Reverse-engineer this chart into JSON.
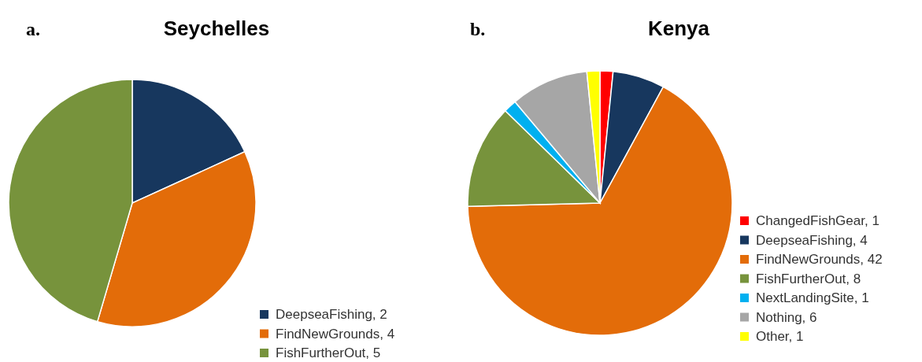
{
  "chart_data": [
    {
      "type": "pie",
      "title": "Seychelles",
      "annotations": [
        "a."
      ],
      "categories": [
        "DeepseaFishing, 2",
        "FindNewGrounds, 4",
        "FishFurtherOut, 5"
      ],
      "values": [
        2,
        4,
        5
      ],
      "colors": [
        "#17375e",
        "#e36c09",
        "#77933c"
      ],
      "legend": "bottom right"
    },
    {
      "type": "pie",
      "title": "Kenya",
      "annotations": [
        "b."
      ],
      "categories": [
        "ChangedFishGear, 1",
        "DeepseaFishing, 4",
        "FindNewGrounds, 42",
        "FishFurtherOut, 8",
        "NextLandingSite, 1",
        "Nothing, 6",
        "Other, 1"
      ],
      "values": [
        1,
        4,
        42,
        8,
        1,
        6,
        1
      ],
      "colors": [
        "#ff0000",
        "#17375e",
        "#e36c09",
        "#77933c",
        "#00b0f0",
        "#a6a6a6",
        "#ffff00"
      ],
      "legend": "right"
    }
  ]
}
